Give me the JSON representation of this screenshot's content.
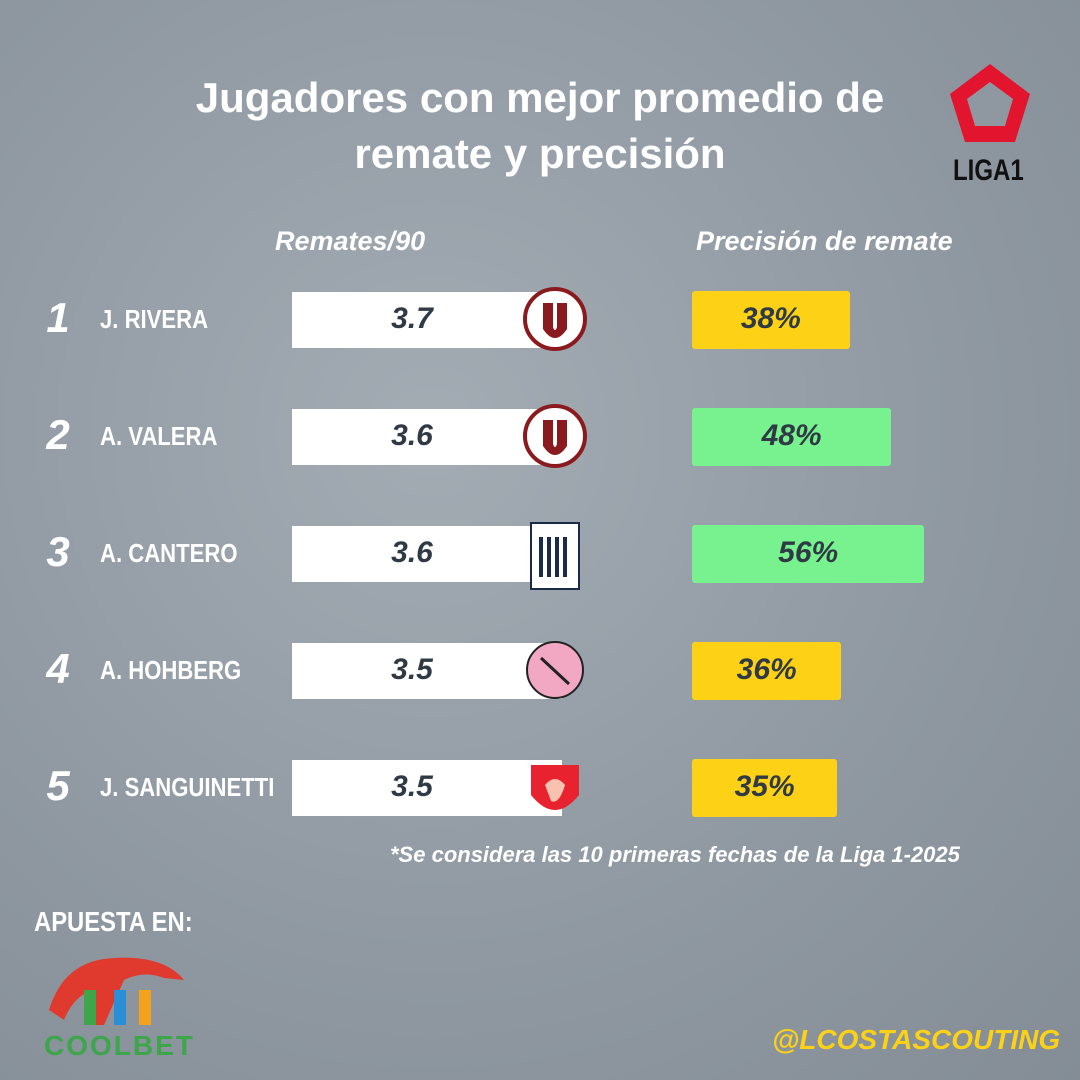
{
  "chart_data": {
    "type": "bar",
    "title": "Jugadores con mejor promedio de remate y precisión",
    "logo": "LIGA1",
    "ranks": [
      1,
      2,
      3,
      4,
      5
    ],
    "categories": [
      "J. RIVERA",
      "A. VALERA",
      "A. CANTERO",
      "A. HOHBERG",
      "J. SANGUINETTI"
    ],
    "series": [
      {
        "name": "Remates/90",
        "color": "#ffffff",
        "values": [
          3.7,
          3.6,
          3.6,
          3.5,
          3.5
        ]
      },
      {
        "name": "Precisión de remate",
        "values": [
          38,
          48,
          56,
          36,
          35
        ],
        "value_labels": [
          "38%",
          "48%",
          "56%",
          "36%",
          "35%"
        ],
        "colors": [
          "#fcd116",
          "#77f28e",
          "#77f28e",
          "#fcd116",
          "#fcd116"
        ]
      }
    ],
    "note": "*Se considera las 10 primeras fechas de la Liga 1-2025",
    "sponsor_label": "APUESTA EN:",
    "sponsor": "COOLBET",
    "handle": "@LCOSTASCOUTING"
  }
}
